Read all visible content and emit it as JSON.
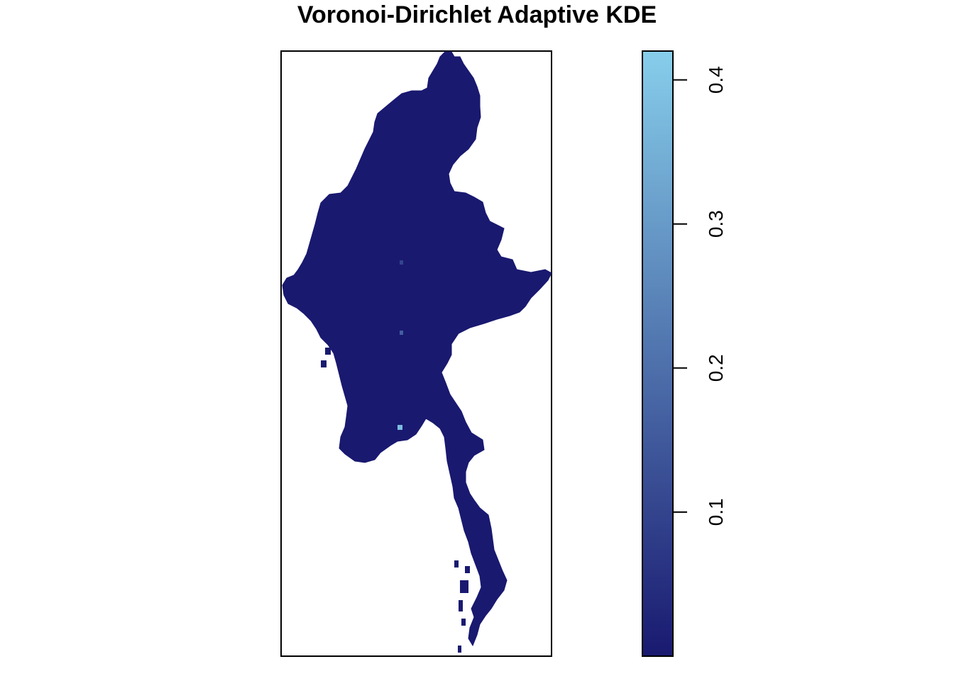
{
  "chart_data": {
    "type": "heatmap",
    "title": "Voronoi-Dirichlet Adaptive KDE",
    "xlabel": "",
    "ylabel": "",
    "map_region": "Myanmar",
    "colorbar": {
      "ticks": [
        0.1,
        0.2,
        0.3,
        0.4
      ],
      "tick_labels": [
        "0.1",
        "0.2",
        "0.3",
        "0.4"
      ],
      "range": [
        0.0,
        0.42
      ],
      "color_low": "#191970",
      "color_high": "#87CEEB",
      "placement": "right",
      "label_orientation": "rotated"
    },
    "base_value": 0.005,
    "hotspots": [
      {
        "name": "central-hotspot",
        "value": 0.1
      },
      {
        "name": "lower-central-hotspot",
        "value": 0.16
      },
      {
        "name": "southern-hotspot",
        "value": 0.38
      }
    ]
  }
}
